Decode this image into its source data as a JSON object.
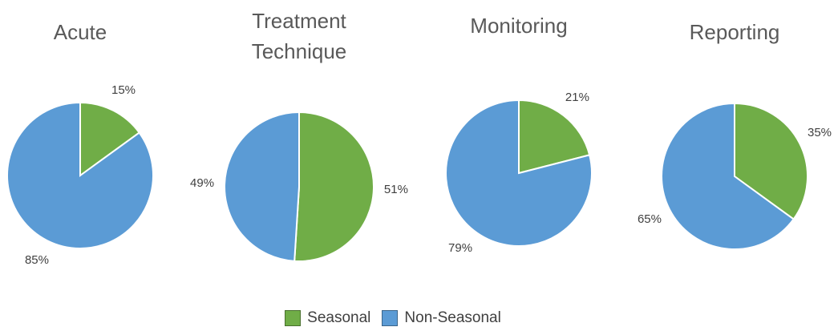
{
  "chart_data": [
    {
      "type": "pie",
      "title": "Acute",
      "values": [
        15,
        85
      ],
      "value_labels": [
        "15%",
        "85%"
      ]
    },
    {
      "type": "pie",
      "title": "Treatment Technique",
      "values": [
        51,
        49
      ],
      "value_labels": [
        "51%",
        "49%"
      ]
    },
    {
      "type": "pie",
      "title": "Monitoring",
      "values": [
        21,
        79
      ],
      "value_labels": [
        "21%",
        "79%"
      ]
    },
    {
      "type": "pie",
      "title": "Reporting",
      "values": [
        35,
        65
      ],
      "value_labels": [
        "35%",
        "65%"
      ]
    }
  ],
  "legend": {
    "categories": [
      "Seasonal",
      "Non-Seasonal"
    ],
    "colors": [
      "#70ad47",
      "#5b9bd5"
    ]
  }
}
